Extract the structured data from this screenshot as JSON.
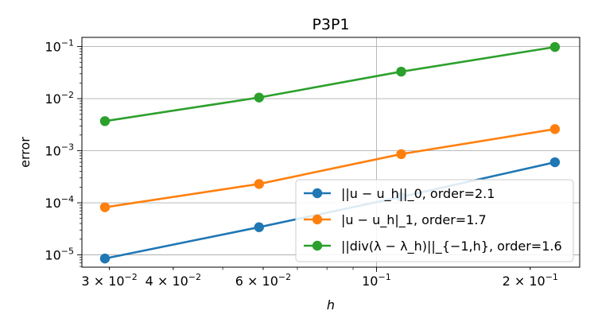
{
  "chart_data": {
    "type": "line",
    "title": "P3P1",
    "xlabel": "h",
    "ylabel": "error",
    "xscale": "log",
    "yscale": "log",
    "xlim": [
      0.0265,
      0.25
    ],
    "ylim": [
      5.8e-06,
      0.15
    ],
    "grid": {
      "major_x": [
        0.1
      ],
      "major_y": [
        1e-05,
        0.0001,
        0.001,
        0.01,
        0.1
      ]
    },
    "x_ticks": [
      {
        "value": 0.03,
        "mantissa": "3",
        "exponent": "−2"
      },
      {
        "value": 0.04,
        "mantissa": "4",
        "exponent": "−2"
      },
      {
        "value": 0.06,
        "mantissa": "6",
        "exponent": "−2"
      },
      {
        "value": 0.1,
        "mantissa": "",
        "exponent": "−1"
      },
      {
        "value": 0.2,
        "mantissa": "2",
        "exponent": "−1"
      }
    ],
    "y_ticks": [
      {
        "value": 1e-05,
        "exponent": "−5"
      },
      {
        "value": 0.0001,
        "exponent": "−4"
      },
      {
        "value": 0.001,
        "exponent": "−3"
      },
      {
        "value": 0.01,
        "exponent": "−2"
      },
      {
        "value": 0.1,
        "exponent": "−1"
      }
    ],
    "x": [
      0.0294,
      0.0589,
      0.1118,
      0.2236
    ],
    "legend_position": "lower-right",
    "series": [
      {
        "name": "||u − u_h||_0, order=2.1",
        "color": "#1f77b4",
        "values": [
          8.5e-06,
          3.4e-05,
          0.00013,
          0.0006
        ]
      },
      {
        "name": "|u − u_h|_1, order=1.7",
        "color": "#ff7f0e",
        "values": [
          8.2e-05,
          0.00023,
          0.00086,
          0.0026
        ]
      },
      {
        "name": "||div(λ − λ_h)||_{−1,h}, order=1.6",
        "color": "#2ca02c",
        "values": [
          0.0037,
          0.0105,
          0.033,
          0.098
        ]
      }
    ]
  }
}
